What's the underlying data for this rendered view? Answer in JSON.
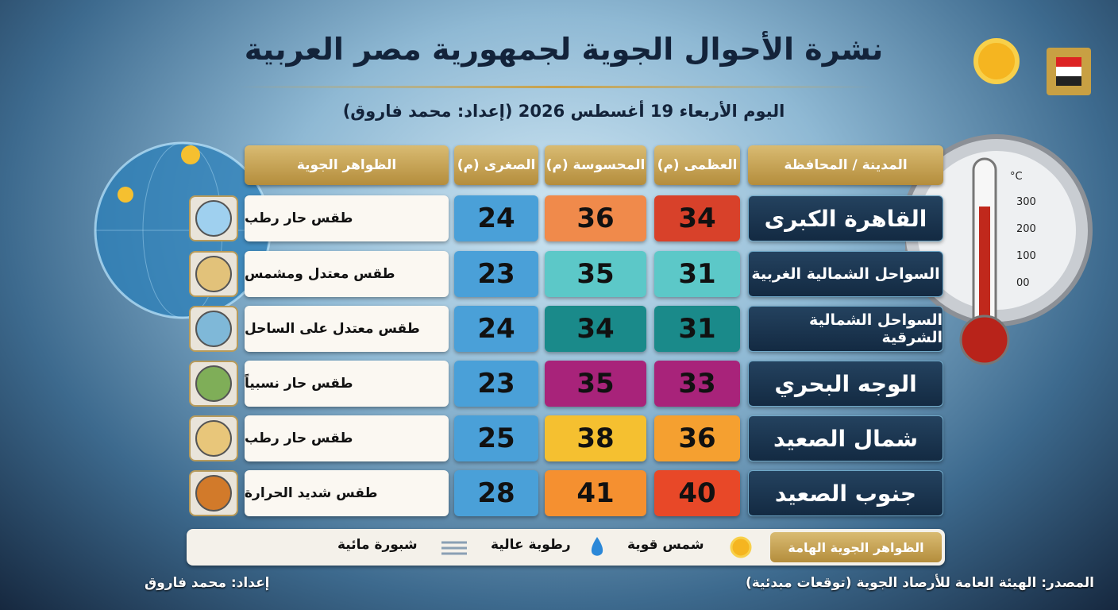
{
  "header": {
    "title": "نشرة الأحوال الجوية لجمهورية مصر العربية",
    "subtitle": "اليوم الأربعاء 19 أغسطس 2026 (إعداد: محمد فاروق)"
  },
  "table": {
    "headers": [
      "المدينة / المحافظة",
      "العظمى (م)",
      "المحسوسة (م)",
      "الصغرى (م)",
      "الظواهر الجوية"
    ],
    "rows": [
      [
        "القاهرة الكبرى",
        "34",
        "36",
        "24",
        "طقس حار رطب"
      ],
      [
        "السواحل الشمالية الغربية",
        "31",
        "35",
        "23",
        "طقس معتدل ومشمس"
      ],
      [
        "السواحل الشمالية الشرقية",
        "31",
        "34",
        "24",
        "طقس معتدل على الساحل"
      ],
      [
        "الوجه البحري",
        "33",
        "35",
        "23",
        "طقس حار نسبياً"
      ],
      [
        "شمال الصعيد",
        "36",
        "38",
        "25",
        "طقس حار رطب"
      ],
      [
        "جنوب الصعيد",
        "40",
        "41",
        "28",
        "طقس شديد الحرارة"
      ]
    ]
  },
  "legend": {
    "title": "الظواهر الجوية الهامة",
    "items": [
      "شمس قوية",
      "رطوبة عالية",
      "شبورة مائية"
    ]
  },
  "thermometer": {
    "unit": "°C",
    "labels": [
      "300",
      "200",
      "100",
      "00"
    ]
  },
  "footer": {
    "source": "المصدر: الهيئة العامة للأرصاد الجوية (توقعات مبدئية)",
    "author": "إعداد: محمد فاروق"
  }
}
